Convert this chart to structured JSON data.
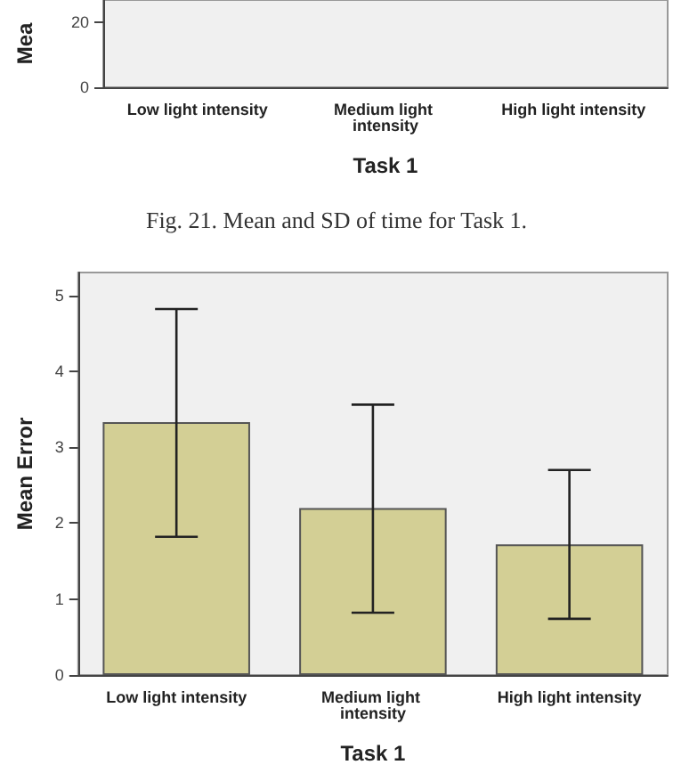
{
  "chart_data": [
    {
      "type": "bar",
      "categories": [
        "Low light intensity",
        "Medium light intensity",
        "High light intensity"
      ],
      "values": [
        null,
        null,
        null
      ],
      "color": "#d3cf95",
      "ylim": [
        0,
        27
      ],
      "yticks": [
        0,
        20
      ],
      "xlabel": "Task 1",
      "ylabel": "Mea",
      "grid": false,
      "annotations": [
        "Fig. 21. Mean and SD of time for Task 1."
      ]
    },
    {
      "type": "bar",
      "categories": [
        "Low light intensity",
        "Medium light intensity",
        "High light intensity"
      ],
      "values": [
        3.33,
        2.2,
        1.72
      ],
      "errors": [
        [
          1.82,
          4.82
        ],
        [
          0.82,
          3.56
        ],
        [
          0.74,
          2.7
        ]
      ],
      "color": "#d3cf95",
      "ylim": [
        0,
        5.3
      ],
      "yticks": [
        0,
        1,
        2,
        3,
        4,
        5
      ],
      "xlabel": "Task 1",
      "ylabel": "Mean Error",
      "grid": false
    }
  ]
}
